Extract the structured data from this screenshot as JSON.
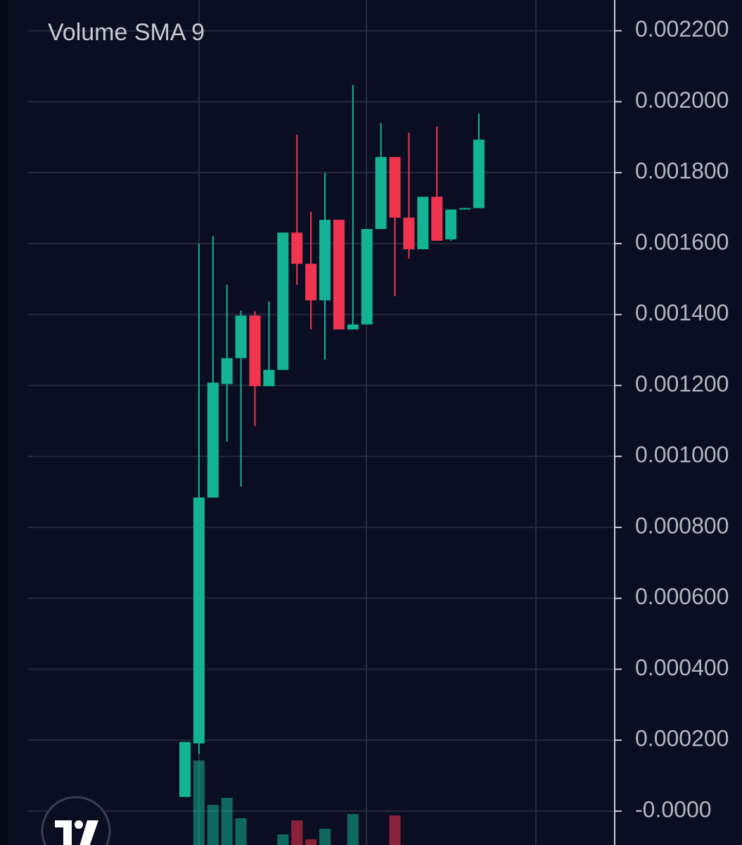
{
  "chart_data": {
    "type": "candlestick",
    "title": "Volume SMA 9",
    "up_color": "#14b394",
    "down_color": "#f2354f",
    "grid": true,
    "ylim": [
      -1e-05,
      0.00227
    ],
    "yticks": [
      {
        "value": 0.0022,
        "label": "0.002200"
      },
      {
        "value": 0.002,
        "label": "0.002000"
      },
      {
        "value": 0.0018,
        "label": "0.001800"
      },
      {
        "value": 0.0016,
        "label": "0.001600"
      },
      {
        "value": 0.0014,
        "label": "0.001400"
      },
      {
        "value": 0.0012,
        "label": "0.001200"
      },
      {
        "value": 0.001,
        "label": "0.001000"
      },
      {
        "value": 0.0008,
        "label": "0.000800"
      },
      {
        "value": 0.0006,
        "label": "0.000600"
      },
      {
        "value": 0.0004,
        "label": "0.000400"
      },
      {
        "value": 0.0002,
        "label": "0.000200"
      },
      {
        "value": 0,
        "label": "-0.0000"
      }
    ],
    "open": [
      4e-05,
      0.000191,
      0.000884,
      0.001204,
      0.001277,
      0.001397,
      0.001198,
      0.001244,
      0.001631,
      0.001543,
      0.00144,
      0.001667,
      0.001358,
      0.001372,
      0.001641,
      0.001844,
      0.001673,
      0.001584,
      0.001732,
      0.001612,
      0.001696,
      0.0017
    ],
    "close": [
      0.000195,
      0.000884,
      0.001208,
      0.001277,
      0.001397,
      0.001198,
      0.001244,
      0.001631,
      0.001543,
      0.00144,
      0.001667,
      0.001358,
      0.001372,
      0.001641,
      0.001844,
      0.001673,
      0.001584,
      0.001732,
      0.001608,
      0.001696,
      0.0017,
      0.001893
    ],
    "high": [
      0.000195,
      0.0016,
      0.001621,
      0.001484,
      0.001411,
      0.001409,
      0.001437,
      0.001631,
      0.001907,
      0.00169,
      0.001799,
      0.001667,
      0.002047,
      0.001641,
      0.00194,
      0.001844,
      0.001913,
      0.001732,
      0.00193,
      0.001696,
      0.0017,
      0.001966
    ],
    "low": [
      4e-05,
      0.000161,
      0.000884,
      0.001041,
      0.000915,
      0.001086,
      0.001198,
      0.001244,
      0.001484,
      0.001358,
      0.001273,
      0.001358,
      0.001358,
      0.001372,
      0.001641,
      0.001452,
      0.001558,
      0.001584,
      0.001608,
      0.001608,
      0.001696,
      0.0017
    ],
    "volume": [
      0,
      120,
      57,
      67,
      38,
      0,
      0,
      15,
      35,
      8,
      23,
      0,
      44,
      0,
      0,
      42,
      0,
      0,
      0,
      0,
      0,
      0
    ],
    "volume_ylim": [
      0,
      400
    ]
  }
}
